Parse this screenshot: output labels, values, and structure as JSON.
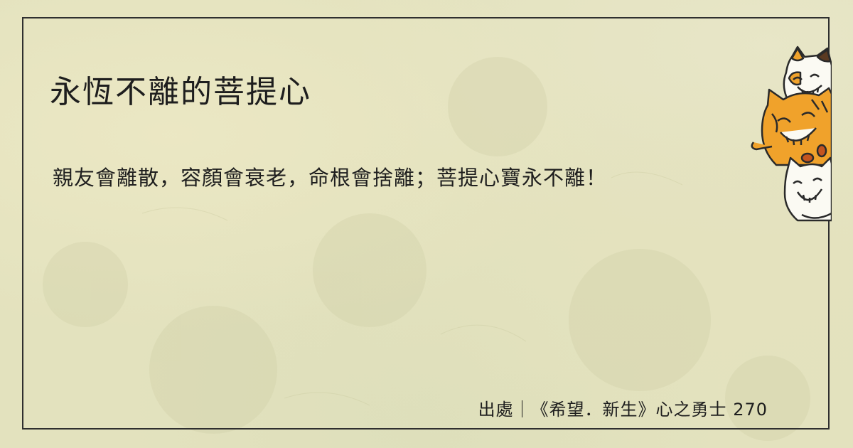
{
  "card": {
    "title": "永恆不離的菩提心",
    "quote": "親友會離散，容顏會衰老，命根會捨離；菩提心寶永不離！",
    "source": "出處｜《希望．新生》心之勇士 270"
  },
  "illustration": {
    "icon": "peeking-cats-illustration",
    "colors": {
      "orange": "#f0a22b",
      "white": "#fbfaf3",
      "outline": "#2a2a2a"
    }
  },
  "background": {
    "color": "#e3e2be"
  }
}
